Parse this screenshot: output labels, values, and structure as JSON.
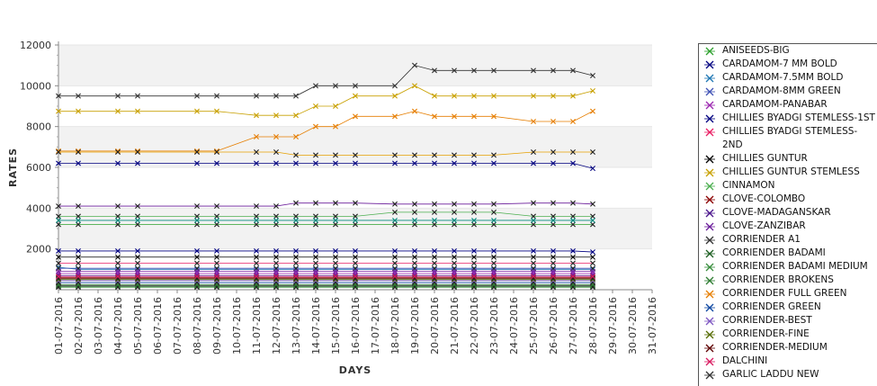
{
  "chart_data": {
    "type": "line",
    "xlabel": "DAYS",
    "ylabel": "RATES",
    "ylim": [
      0,
      12000
    ],
    "yticks": [
      2000,
      4000,
      6000,
      8000,
      10000,
      12000
    ],
    "grid": "alternating horizontal bands",
    "legend_position": "right",
    "categories": [
      "01-07-2016",
      "02-07-2016",
      "03-07-2016",
      "04-07-2016",
      "05-07-2016",
      "06-07-2016",
      "07-07-2016",
      "08-07-2016",
      "09-07-2016",
      "10-07-2016",
      "11-07-2016",
      "12-07-2016",
      "13-07-2016",
      "14-07-2016",
      "15-07-2016",
      "16-07-2016",
      "17-07-2016",
      "18-07-2016",
      "19-07-2016",
      "20-07-2016",
      "21-07-2016",
      "22-07-2016",
      "23-07-2016",
      "24-07-2016",
      "25-07-2016",
      "26-07-2016",
      "27-07-2016",
      "28-07-2016",
      "29-07-2016",
      "30-07-2016",
      "31-07-2016"
    ],
    "series": [
      {
        "name": "ANISEEDS-BIG",
        "color": "#2ca02c",
        "values": [
          3200,
          3200,
          null,
          3200,
          3200,
          null,
          null,
          3200,
          3200,
          null,
          3200,
          3200,
          3200,
          3200,
          3200,
          3200,
          null,
          3200,
          3200,
          3200,
          3200,
          3200,
          3200,
          null,
          3200,
          3200,
          3200,
          3200,
          null,
          null,
          null
        ]
      },
      {
        "name": "CARDAMOM-7 MM BOLD",
        "color": "#000080",
        "values": [
          6200,
          6200,
          null,
          6200,
          6200,
          null,
          null,
          6200,
          6200,
          null,
          6200,
          6200,
          6200,
          6200,
          6200,
          6200,
          null,
          6200,
          6200,
          6200,
          6200,
          6200,
          6200,
          null,
          6200,
          6200,
          6200,
          5950,
          null,
          null,
          null
        ]
      },
      {
        "name": "CARDAMOM-7.5MM BOLD",
        "color": "#1f77b4",
        "values": [
          1100,
          1000,
          null,
          1000,
          1000,
          null,
          null,
          1000,
          1000,
          null,
          1000,
          1000,
          1000,
          1000,
          1000,
          1000,
          null,
          1000,
          1000,
          1000,
          1000,
          1000,
          1000,
          null,
          1000,
          1000,
          1000,
          1000,
          null,
          null,
          null
        ]
      },
      {
        "name": "CARDAMOM-8MM GREEN",
        "color": "#3f51b5",
        "values": [
          1050,
          1050,
          null,
          1050,
          1050,
          null,
          null,
          1050,
          1050,
          null,
          1050,
          1050,
          1050,
          1050,
          1050,
          1050,
          null,
          1050,
          1050,
          1050,
          1050,
          1050,
          1050,
          null,
          1050,
          1050,
          1050,
          1050,
          null,
          null,
          null
        ]
      },
      {
        "name": "CARDAMOM-PANABAR",
        "color": "#9c27b0",
        "values": [
          800,
          800,
          null,
          800,
          800,
          null,
          null,
          800,
          800,
          null,
          800,
          800,
          800,
          800,
          800,
          800,
          null,
          800,
          800,
          800,
          800,
          800,
          800,
          null,
          800,
          800,
          800,
          800,
          null,
          null,
          null
        ]
      },
      {
        "name": "CHILLIES BYADGI STEMLESS-1ST",
        "color": "#000080",
        "values": [
          1900,
          1900,
          null,
          1900,
          1900,
          null,
          null,
          1900,
          1900,
          null,
          1900,
          1900,
          1900,
          1900,
          1900,
          1900,
          null,
          1900,
          1900,
          1900,
          1900,
          1900,
          1900,
          null,
          1900,
          1900,
          1900,
          1850,
          null,
          null,
          null
        ]
      },
      {
        "name": "CHILLIES BYADGI STEMLESS-2ND",
        "color": "#e91e63",
        "values": [
          1300,
          1300,
          null,
          1300,
          1300,
          null,
          null,
          1300,
          1300,
          null,
          1300,
          1300,
          1300,
          1300,
          1300,
          1300,
          null,
          1300,
          1300,
          1300,
          1300,
          1300,
          1300,
          null,
          1300,
          1300,
          1300,
          1300,
          null,
          null,
          null
        ]
      },
      {
        "name": "CHILLIES GUNTUR",
        "color": "#000000",
        "values": [
          1600,
          1600,
          null,
          1600,
          1600,
          null,
          null,
          1600,
          1600,
          null,
          1600,
          1600,
          1600,
          1600,
          1600,
          1600,
          null,
          1600,
          1600,
          1600,
          1600,
          1600,
          1600,
          null,
          1600,
          1600,
          1600,
          1600,
          null,
          null,
          null
        ]
      },
      {
        "name": "CHILLIES GUNTUR STEMLESS",
        "color": "#c8a000",
        "values": [
          8750,
          8750,
          null,
          8750,
          8750,
          null,
          null,
          8750,
          8750,
          null,
          8550,
          8550,
          8550,
          9000,
          9000,
          9500,
          null,
          9500,
          10000,
          9500,
          9500,
          9500,
          9500,
          null,
          9500,
          9500,
          9500,
          9750,
          null,
          null,
          null
        ]
      },
      {
        "name": "CINNAMON",
        "color": "#4caf50",
        "values": [
          3600,
          3600,
          null,
          3600,
          3600,
          null,
          null,
          3600,
          3600,
          null,
          3600,
          3600,
          3600,
          3600,
          3600,
          3600,
          null,
          3800,
          3800,
          3800,
          3800,
          3800,
          3800,
          null,
          3600,
          3600,
          3600,
          3600,
          null,
          null,
          null
        ]
      },
      {
        "name": "CLOVE-COLOMBO",
        "color": "#8b0000",
        "values": [
          600,
          600,
          null,
          600,
          600,
          null,
          null,
          600,
          600,
          null,
          600,
          600,
          600,
          600,
          600,
          600,
          null,
          600,
          600,
          600,
          600,
          600,
          600,
          null,
          600,
          600,
          600,
          600,
          null,
          null,
          null
        ]
      },
      {
        "name": "CLOVE-MADAGANSKAR",
        "color": "#4a148c",
        "values": [
          700,
          700,
          null,
          700,
          700,
          null,
          null,
          700,
          700,
          null,
          700,
          700,
          700,
          700,
          700,
          700,
          null,
          700,
          700,
          700,
          700,
          700,
          700,
          null,
          700,
          700,
          700,
          700,
          null,
          null,
          null
        ]
      },
      {
        "name": "CLOVE-ZANZIBAR",
        "color": "#6a1b9a",
        "values": [
          4100,
          4100,
          null,
          4100,
          4100,
          null,
          null,
          4100,
          4100,
          null,
          4100,
          4100,
          4250,
          4250,
          4250,
          4250,
          null,
          4200,
          4200,
          4200,
          4200,
          4200,
          4200,
          null,
          4250,
          4250,
          4250,
          4200,
          null,
          null,
          null
        ]
      },
      {
        "name": "CORRIENDER A1",
        "color": "#333333",
        "values": [
          200,
          200,
          null,
          200,
          200,
          null,
          null,
          200,
          200,
          null,
          200,
          200,
          200,
          200,
          200,
          200,
          null,
          200,
          200,
          200,
          200,
          200,
          200,
          null,
          200,
          200,
          200,
          200,
          null,
          null,
          null
        ]
      },
      {
        "name": "CORRIENDER BADAMI",
        "color": "#1b5e20",
        "values": [
          150,
          150,
          null,
          150,
          150,
          null,
          null,
          150,
          150,
          null,
          150,
          150,
          150,
          150,
          150,
          150,
          null,
          150,
          150,
          150,
          150,
          150,
          150,
          null,
          150,
          150,
          150,
          150,
          null,
          null,
          null
        ]
      },
      {
        "name": "CORRIENDER BADAMI MEDIUM",
        "color": "#388e3c",
        "values": [
          120,
          120,
          null,
          120,
          120,
          null,
          null,
          120,
          120,
          null,
          120,
          120,
          120,
          120,
          120,
          120,
          null,
          120,
          120,
          120,
          120,
          120,
          120,
          null,
          120,
          120,
          120,
          120,
          null,
          null,
          null
        ]
      },
      {
        "name": "CORRIENDER BROKENS",
        "color": "#2e7d32",
        "values": [
          250,
          250,
          null,
          250,
          250,
          null,
          null,
          250,
          250,
          null,
          250,
          250,
          250,
          250,
          250,
          250,
          null,
          250,
          250,
          250,
          250,
          250,
          250,
          null,
          250,
          250,
          250,
          250,
          null,
          null,
          null
        ]
      },
      {
        "name": "CORRIENDER FULL GREEN",
        "color": "#e67e00",
        "values": [
          6800,
          6800,
          null,
          6800,
          6800,
          null,
          null,
          6800,
          6800,
          null,
          7500,
          7500,
          7500,
          8000,
          8000,
          8500,
          null,
          8500,
          8750,
          8500,
          8500,
          8500,
          8500,
          null,
          8250,
          8250,
          8250,
          8750,
          null,
          null,
          null
        ]
      },
      {
        "name": "CORRIENDER GREEN",
        "color": "#0d47a1",
        "values": [
          350,
          350,
          null,
          350,
          350,
          null,
          null,
          350,
          350,
          null,
          350,
          350,
          350,
          350,
          350,
          350,
          null,
          350,
          350,
          350,
          350,
          350,
          350,
          null,
          350,
          350,
          350,
          350,
          null,
          null,
          null
        ]
      },
      {
        "name": "CORRIENDER-BEST",
        "color": "#7e57c2",
        "values": [
          450,
          450,
          null,
          450,
          450,
          null,
          null,
          450,
          450,
          null,
          450,
          450,
          450,
          450,
          450,
          450,
          null,
          450,
          450,
          450,
          450,
          450,
          450,
          null,
          450,
          450,
          450,
          450,
          null,
          null,
          null
        ]
      },
      {
        "name": "CORRIENDER-FINE",
        "color": "#556b00",
        "values": [
          500,
          500,
          null,
          500,
          500,
          null,
          null,
          500,
          500,
          null,
          500,
          500,
          500,
          500,
          500,
          500,
          null,
          500,
          500,
          500,
          500,
          500,
          500,
          null,
          500,
          500,
          500,
          500,
          null,
          null,
          null
        ]
      },
      {
        "name": "CORRIENDER-MEDIUM",
        "color": "#5d0000",
        "values": [
          550,
          550,
          null,
          550,
          550,
          null,
          null,
          550,
          550,
          null,
          550,
          550,
          550,
          550,
          550,
          550,
          null,
          550,
          550,
          550,
          550,
          550,
          550,
          null,
          550,
          550,
          550,
          550,
          null,
          null,
          null
        ]
      },
      {
        "name": "DALCHINI",
        "color": "#d81b60",
        "values": [
          650,
          650,
          null,
          650,
          650,
          null,
          null,
          650,
          650,
          null,
          650,
          650,
          650,
          650,
          650,
          650,
          null,
          650,
          650,
          650,
          650,
          650,
          650,
          null,
          650,
          650,
          650,
          650,
          null,
          null,
          null
        ]
      },
      {
        "name": "GARLIC LADDU NEW",
        "color": "#333333",
        "values": [
          9500,
          9500,
          null,
          9500,
          9500,
          null,
          null,
          9500,
          9500,
          null,
          9500,
          9500,
          9500,
          10000,
          10000,
          10000,
          null,
          10000,
          11000,
          10750,
          10750,
          10750,
          10750,
          null,
          10750,
          10750,
          10750,
          10500,
          null,
          null,
          null
        ]
      },
      {
        "name": "",
        "color": "#e6a000",
        "values": [
          6750,
          6750,
          null,
          6750,
          6750,
          null,
          null,
          6750,
          6750,
          null,
          6750,
          6750,
          6600,
          6600,
          6600,
          6600,
          null,
          6600,
          6600,
          6600,
          6600,
          6600,
          6600,
          null,
          6750,
          6750,
          6750,
          6750,
          null,
          null,
          null
        ]
      },
      {
        "name": "",
        "color": "#7b1fa2",
        "values": [
          900,
          900,
          null,
          900,
          900,
          null,
          null,
          900,
          900,
          null,
          900,
          900,
          900,
          900,
          900,
          900,
          null,
          900,
          900,
          900,
          900,
          900,
          900,
          null,
          900,
          900,
          900,
          900,
          null,
          null,
          null
        ]
      },
      {
        "name": "",
        "color": "#00897b",
        "values": [
          3400,
          3400,
          null,
          3400,
          3400,
          null,
          null,
          3400,
          3400,
          null,
          3400,
          3400,
          3400,
          3400,
          3400,
          3400,
          null,
          3400,
          3400,
          3400,
          3400,
          3400,
          3400,
          null,
          3400,
          3400,
          3400,
          3400,
          null,
          null,
          null
        ]
      }
    ]
  }
}
